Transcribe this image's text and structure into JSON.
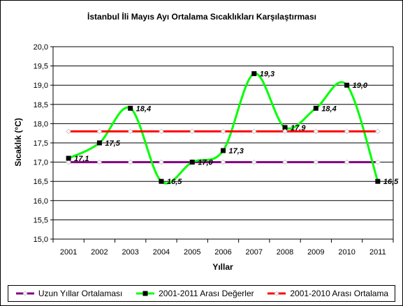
{
  "chart_data": {
    "type": "line",
    "title": "İstanbul İli Mayıs Ayı Ortalama Sıcaklıkları Karşılaştırması",
    "xlabel": "Yıllar",
    "ylabel": "Sıcaklık (°C)",
    "x": [
      "2001",
      "2002",
      "2003",
      "2004",
      "2005",
      "2006",
      "2007",
      "2008",
      "2009",
      "2010",
      "2011"
    ],
    "ylim": [
      15.0,
      20.0
    ],
    "ytick_step": 0.5,
    "y_ticks": [
      "15,0",
      "15,5",
      "16,0",
      "16,5",
      "17,0",
      "17,5",
      "18,0",
      "18,5",
      "19,0",
      "19,5",
      "20,0"
    ],
    "grid": "horizontal",
    "legend_position": "bottom",
    "series": [
      {
        "name": "Uzun Yıllar Ortalaması",
        "color": "#800080",
        "marker": "diamond-white",
        "smooth": false,
        "values": [
          17.0,
          17.0,
          17.0,
          17.0,
          17.0,
          17.0,
          17.0,
          17.0,
          17.0,
          17.0,
          17.0
        ]
      },
      {
        "name": "2001-2011 Arası Değerler",
        "color": "#00ff00",
        "marker": "square-black",
        "smooth": true,
        "values": [
          17.1,
          17.5,
          18.4,
          16.5,
          17.0,
          17.3,
          19.3,
          17.9,
          18.4,
          19.0,
          16.5
        ],
        "labels": [
          "17,1",
          "17,5",
          "18,4",
          "16,5",
          "17,0",
          "17,3",
          "19,3",
          "17,9",
          "18,4",
          "19,0",
          "16,5"
        ]
      },
      {
        "name": "2001-2010 Arası Ortalama",
        "color": "#ff0000",
        "marker": "diamond-white",
        "smooth": false,
        "values": [
          17.8,
          17.8,
          17.8,
          17.8,
          17.8,
          17.8,
          17.8,
          17.8,
          17.8,
          17.8,
          17.8
        ]
      }
    ]
  }
}
